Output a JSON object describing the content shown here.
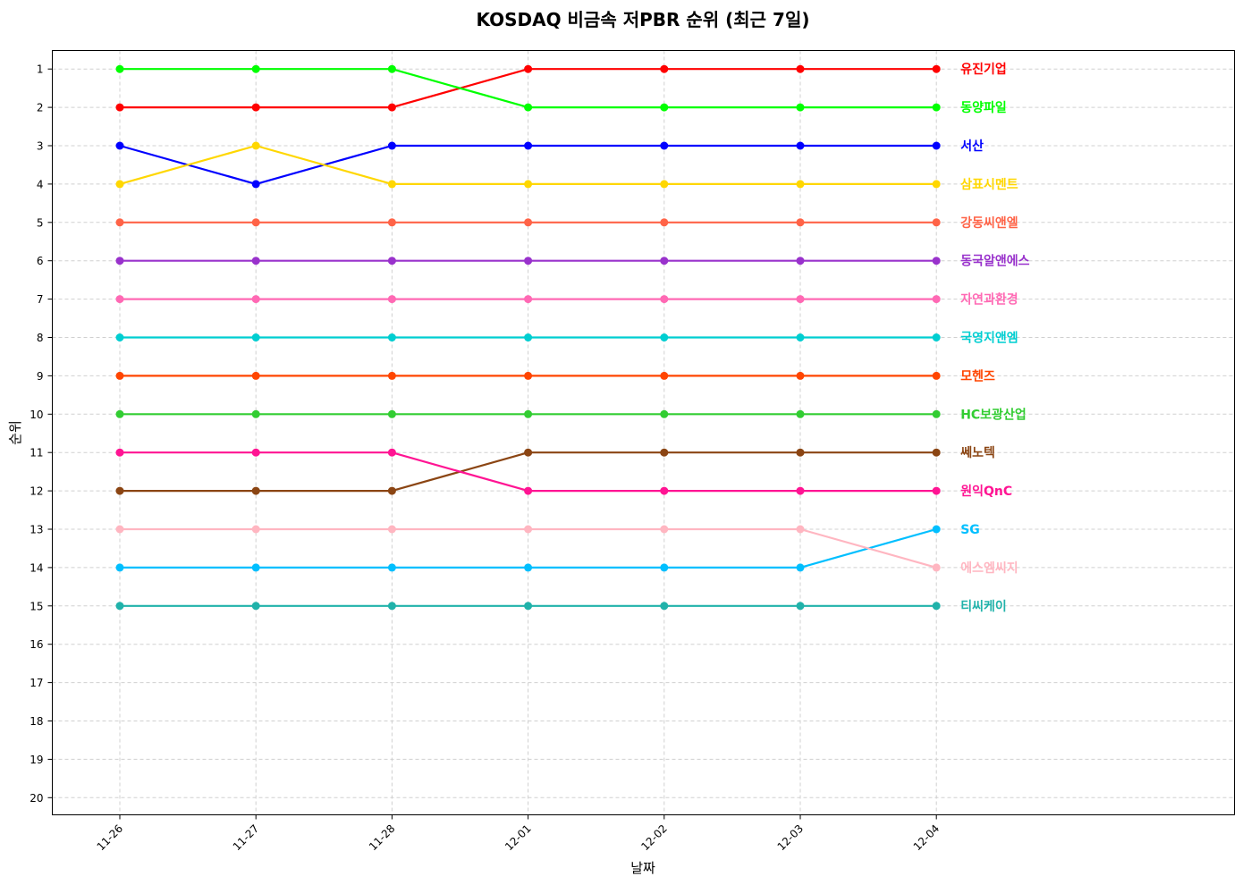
{
  "chart_data": {
    "type": "line",
    "title": "KOSDAQ 비금속 저PBR 순위 (최근 7일)",
    "xlabel": "날짜",
    "ylabel": "순위",
    "categories": [
      "11-26",
      "11-27",
      "11-28",
      "12-01",
      "12-02",
      "12-03",
      "12-04"
    ],
    "y_ticks": [
      1,
      2,
      3,
      4,
      5,
      6,
      7,
      8,
      9,
      10,
      11,
      12,
      13,
      14,
      15,
      16,
      17,
      18,
      19,
      20
    ],
    "ylim": [
      20.5,
      0.5
    ],
    "y_inverted": true,
    "grid": true,
    "series": [
      {
        "name": "유진기업",
        "color": "#ff0000",
        "values": [
          2,
          2,
          2,
          1,
          1,
          1,
          1
        ]
      },
      {
        "name": "동양파일",
        "color": "#00ff00",
        "values": [
          1,
          1,
          1,
          2,
          2,
          2,
          2
        ]
      },
      {
        "name": "서산",
        "color": "#0000ff",
        "values": [
          3,
          4,
          3,
          3,
          3,
          3,
          3
        ]
      },
      {
        "name": "삼표시멘트",
        "color": "#ffd700",
        "values": [
          4,
          3,
          4,
          4,
          4,
          4,
          4
        ]
      },
      {
        "name": "강동씨앤엘",
        "color": "#ff6347",
        "values": [
          5,
          5,
          5,
          5,
          5,
          5,
          5
        ]
      },
      {
        "name": "동국알앤에스",
        "color": "#9932cc",
        "values": [
          6,
          6,
          6,
          6,
          6,
          6,
          6
        ]
      },
      {
        "name": "자연과환경",
        "color": "#ff69b4",
        "values": [
          7,
          7,
          7,
          7,
          7,
          7,
          7
        ]
      },
      {
        "name": "국영지앤엠",
        "color": "#00ced1",
        "values": [
          8,
          8,
          8,
          8,
          8,
          8,
          8
        ]
      },
      {
        "name": "모헨즈",
        "color": "#ff4500",
        "values": [
          9,
          9,
          9,
          9,
          9,
          9,
          9
        ]
      },
      {
        "name": "HC보광산업",
        "color": "#32cd32",
        "values": [
          10,
          10,
          10,
          10,
          10,
          10,
          10
        ]
      },
      {
        "name": "쎄노텍",
        "color": "#8b4513",
        "values": [
          12,
          12,
          12,
          11,
          11,
          11,
          11
        ]
      },
      {
        "name": "원익QnC",
        "color": "#ff1493",
        "values": [
          11,
          11,
          11,
          12,
          12,
          12,
          12
        ]
      },
      {
        "name": "SG",
        "color": "#00bfff",
        "values": [
          14,
          14,
          14,
          14,
          14,
          14,
          13
        ]
      },
      {
        "name": "에스엠씨지",
        "color": "#ffb6c1",
        "values": [
          13,
          13,
          13,
          13,
          13,
          13,
          14
        ]
      },
      {
        "name": "티씨케이",
        "color": "#20b2aa",
        "values": [
          15,
          15,
          15,
          15,
          15,
          15,
          15
        ]
      }
    ]
  }
}
